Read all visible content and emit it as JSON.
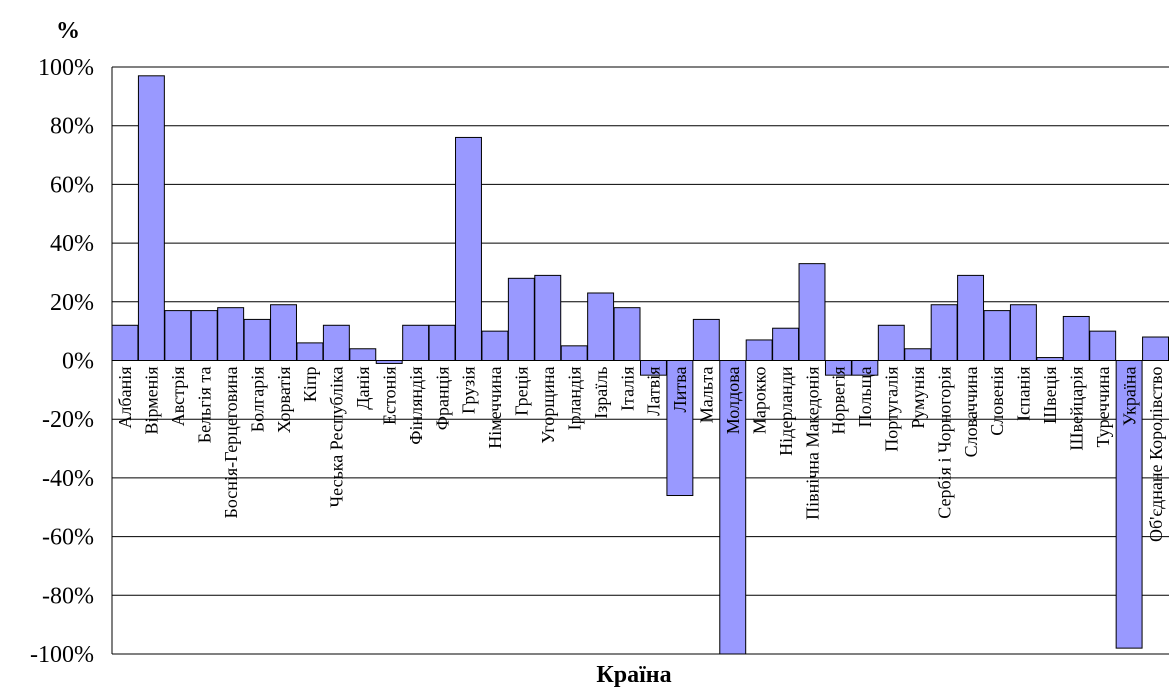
{
  "chart_data": {
    "type": "bar",
    "ylabel": "%",
    "xlabel": "Країна",
    "ylim": [
      -100,
      100
    ],
    "yticks": [
      "100%",
      "80%",
      "60%",
      "40%",
      "20%",
      "0%",
      "-20%",
      "-40%",
      "-60%",
      "-80%",
      "-100%"
    ],
    "grid": true,
    "bar_color": "#9999ff",
    "categories": [
      "Албанія",
      "Вірменія",
      "Австрія",
      "Бельгія та",
      "Боснія-Герцеговина",
      "Болгарія",
      "Хорватія",
      "Кіпр",
      "Чеська Республіка",
      "Данія",
      "Естонія",
      "Фінляндія",
      "Франція",
      "Грузія",
      "Німеччина",
      "Греція",
      "Угорщина",
      "Ірландія",
      "Ізраїль",
      "Італія",
      "Латвія",
      "Литва",
      "Мальта",
      "Молдова",
      "Марокко",
      "Нідерланди",
      "Північна Македонія",
      "Норвегія",
      "Польща",
      "Португалія",
      "Румунія",
      "Сербія і Чорногорія",
      "Словаччина",
      "Словенія",
      "Іспанія",
      "Швеція",
      "Швейцарія",
      "Туреччина",
      "Україна",
      "Об'єднане Королівство"
    ],
    "values": [
      12,
      97,
      17,
      17,
      18,
      14,
      19,
      6,
      12,
      4,
      -1,
      12,
      12,
      76,
      10,
      28,
      29,
      5,
      23,
      18,
      -5,
      -46,
      14,
      -100,
      7,
      11,
      33,
      -5,
      -5,
      12,
      4,
      19,
      29,
      17,
      19,
      1,
      15,
      10,
      -98,
      8
    ]
  }
}
